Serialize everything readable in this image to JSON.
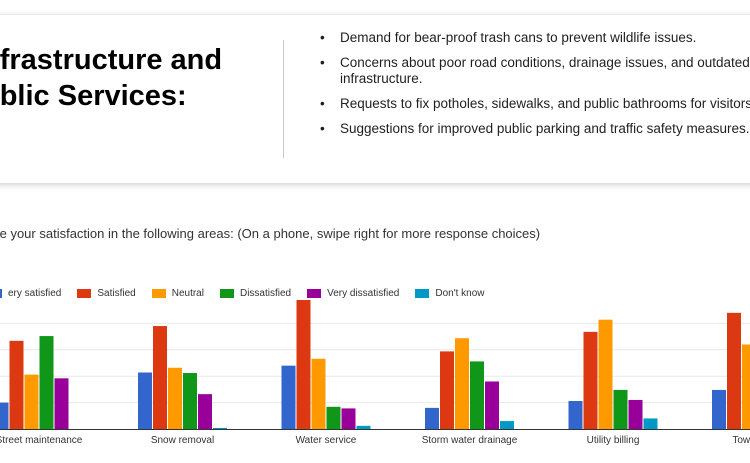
{
  "slide": {
    "title_lines": [
      "nfrastructure and",
      "ublic Services:"
    ],
    "bullets": [
      "Demand for bear-proof trash cans to prevent wildlife issues.",
      "Concerns about poor road conditions, drainage issues, and outdated infrastructure.",
      "Requests to fix potholes, sidewalks, and public bathrooms for visitors.",
      "Suggestions for improved public parking and traffic safety measures."
    ],
    "bullet_glyph": "•"
  },
  "chart_data": {
    "type": "bar",
    "title": "te your satisfaction in the following areas:  (On a phone, swipe right for more response choices)",
    "legend_position": "top-left",
    "categories": [
      "Street maintenance",
      "Snow removal",
      "Water service",
      "Storm water drainage",
      "Utility billing",
      "Town trans"
    ],
    "series": [
      {
        "name": "ery satisfied",
        "color": "#3366cc",
        "values": [
          50,
          107,
          120,
          40,
          53,
          74
        ]
      },
      {
        "name": "Satisfied",
        "color": "#dc3912",
        "values": [
          167,
          195,
          250,
          147,
          184,
          220
        ]
      },
      {
        "name": "Neutral",
        "color": "#ff9900",
        "values": [
          103,
          116,
          133,
          172,
          207,
          160
        ]
      },
      {
        "name": "Dissatisfied",
        "color": "#109618",
        "values": [
          176,
          106,
          42,
          128,
          74,
          0
        ]
      },
      {
        "name": "Very dissatisfied",
        "color": "#990099",
        "values": [
          96,
          66,
          39,
          90,
          55,
          0
        ]
      },
      {
        "name": "Don't know",
        "color": "#0099c6",
        "values": [
          0,
          2,
          6,
          15,
          20,
          0
        ]
      }
    ],
    "ylim": [
      0,
      250
    ],
    "grid": true
  }
}
